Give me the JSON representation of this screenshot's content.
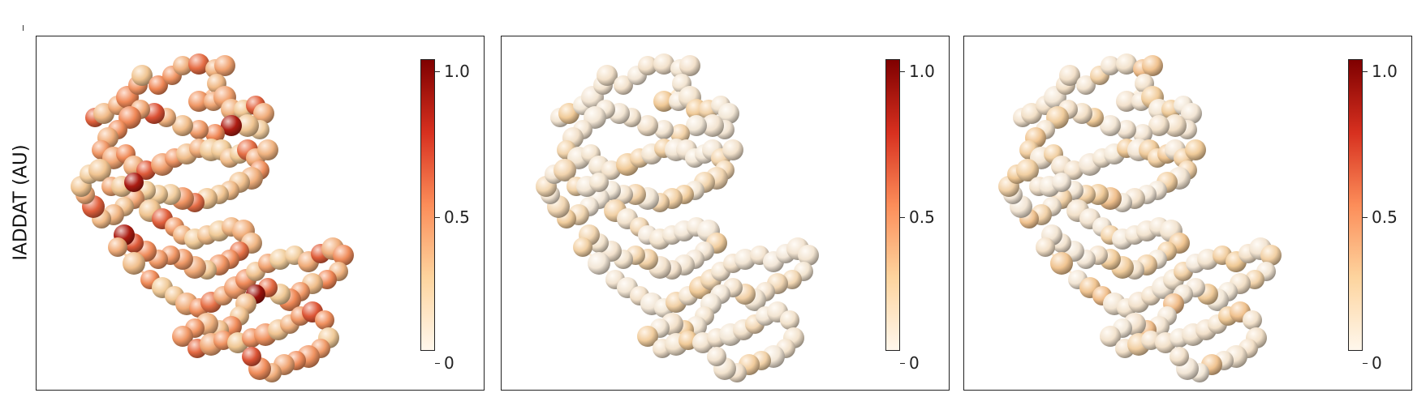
{
  "figure": {
    "ylabel": "IADDAT (AU)",
    "panels": [
      {
        "id": "a",
        "colorbar": {
          "colormap": "OrRd",
          "colors": [
            "#fff7ec",
            "#fdd49e",
            "#fc8d59",
            "#d7301f",
            "#7f0000"
          ],
          "ticks": [
            "0",
            "0.5",
            "1.0"
          ],
          "range": [
            0,
            1
          ]
        }
      },
      {
        "id": "b",
        "colorbar": {
          "colormap": "OrRd",
          "colors": [
            "#fff7ec",
            "#fdd49e",
            "#fc8d59",
            "#d7301f",
            "#7f0000"
          ],
          "ticks": [
            "0",
            "0.5",
            "1.0"
          ],
          "range": [
            0,
            1
          ]
        }
      },
      {
        "id": "c",
        "colorbar": {
          "colormap": "OrRd",
          "colors": [
            "#fff7ec",
            "#fdd49e",
            "#fc8d59",
            "#d7301f",
            "#7f0000"
          ],
          "ticks": [
            "0",
            "0.5",
            "1.0"
          ],
          "range": [
            0,
            1
          ]
        }
      }
    ]
  }
}
